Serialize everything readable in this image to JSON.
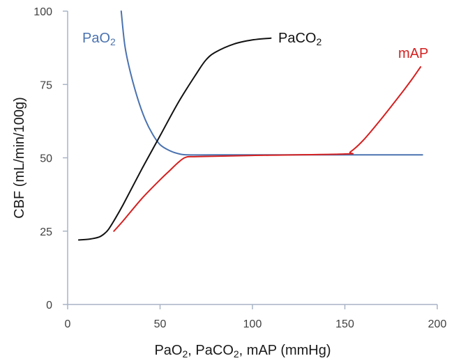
{
  "chart_data": {
    "type": "line",
    "title": "",
    "xlabel": {
      "main": "PaO",
      "sub1": "2",
      "mid": ", PaCO",
      "sub2": "2",
      "tail": ", mAP (mmHg)"
    },
    "ylabel": "CBF (mL/min/100g)",
    "xlim": [
      0,
      200
    ],
    "ylim": [
      0,
      100
    ],
    "xticks": [
      0,
      50,
      100,
      150,
      200
    ],
    "yticks": [
      0,
      25,
      50,
      75,
      100
    ],
    "grid": false,
    "legend": "inline labels",
    "series": [
      {
        "name": "PaO",
        "name_sub": "2",
        "color": "#4a72b0",
        "points": [
          [
            29,
            100
          ],
          [
            31,
            88
          ],
          [
            34,
            79
          ],
          [
            38,
            70
          ],
          [
            42,
            63
          ],
          [
            46,
            58
          ],
          [
            50,
            54.5
          ],
          [
            55,
            52.5
          ],
          [
            60,
            51.4
          ],
          [
            65,
            51
          ],
          [
            80,
            51
          ],
          [
            120,
            51
          ],
          [
            160,
            51
          ],
          [
            192,
            51
          ]
        ]
      },
      {
        "name": "PaCO",
        "name_sub": "2",
        "color": "#111111",
        "points": [
          [
            6,
            22
          ],
          [
            12,
            22.3
          ],
          [
            17,
            23
          ],
          [
            20,
            24.2
          ],
          [
            22,
            25.5
          ],
          [
            25,
            28.5
          ],
          [
            30,
            34
          ],
          [
            40,
            46
          ],
          [
            50,
            57.5
          ],
          [
            60,
            69
          ],
          [
            70,
            79
          ],
          [
            75,
            83.5
          ],
          [
            80,
            86
          ],
          [
            90,
            88.8
          ],
          [
            100,
            90.2
          ],
          [
            110,
            90.8
          ]
        ]
      },
      {
        "name": "mAP",
        "name_sub": "",
        "color": "#d42020",
        "points": [
          [
            25,
            25
          ],
          [
            30,
            28.5
          ],
          [
            40,
            36
          ],
          [
            50,
            42.5
          ],
          [
            55,
            45.5
          ],
          [
            60,
            48.5
          ],
          [
            64,
            50.2
          ],
          [
            70,
            50.4
          ],
          [
            100,
            50.8
          ],
          [
            150,
            51.3
          ],
          [
            153,
            52
          ],
          [
            160,
            56
          ],
          [
            170,
            63.5
          ],
          [
            180,
            71.5
          ],
          [
            186,
            76.5
          ],
          [
            191,
            81
          ]
        ]
      }
    ]
  }
}
